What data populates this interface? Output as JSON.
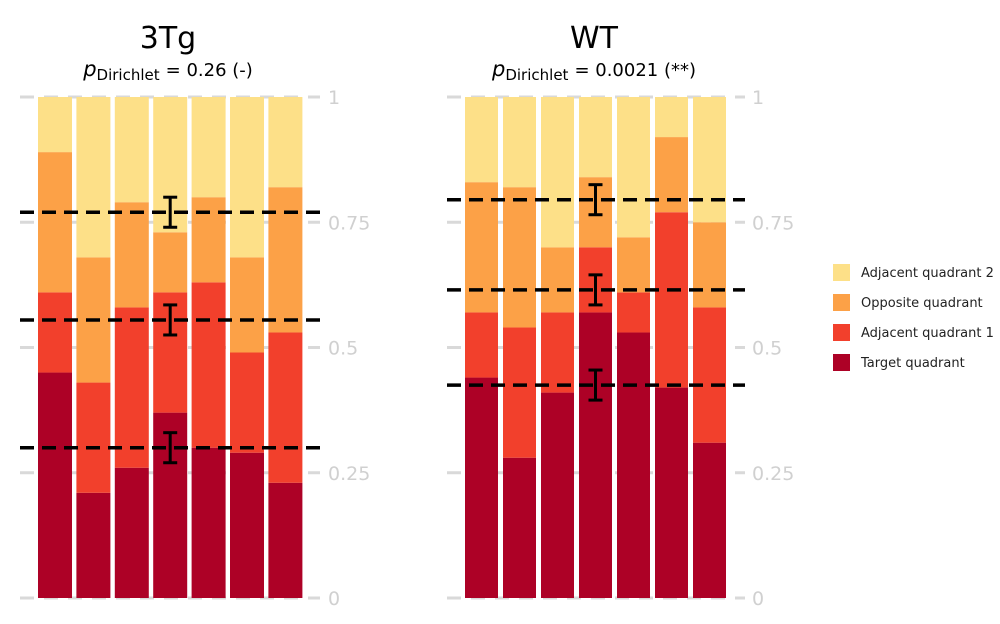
{
  "chart_data": {
    "type": "bar",
    "stacked": true,
    "colors": {
      "Target quadrant": "#ad0126",
      "Adjacent quadrant 1": "#f2402c",
      "Opposite quadrant": "#fca147",
      "Adjacent quadrant 2": "#fde088"
    },
    "legend": {
      "position": "right",
      "entries": [
        "Adjacent quadrant 2",
        "Opposite quadrant",
        "Adjacent quadrant 1",
        "Target quadrant"
      ]
    },
    "yticks": [
      "0",
      "0.25",
      "0.5",
      "0.75",
      "1"
    ],
    "ylim": [
      0,
      1
    ],
    "panels": [
      {
        "title": "3Tg",
        "p_symbol": "p",
        "p_subscript": "Dirichlet",
        "p_value": "= 0.26 (-)",
        "bars": [
          [
            0.45,
            0.16,
            0.28,
            0.11
          ],
          [
            0.21,
            0.22,
            0.25,
            0.32
          ],
          [
            0.26,
            0.32,
            0.21,
            0.21
          ],
          [
            0.37,
            0.24,
            0.12,
            0.27
          ],
          [
            0.3,
            0.33,
            0.17,
            0.2
          ],
          [
            0.29,
            0.2,
            0.19,
            0.32
          ],
          [
            0.23,
            0.3,
            0.29,
            0.18
          ]
        ],
        "means": [
          0.3,
          0.555,
          0.77
        ],
        "errors": [
          0.03,
          0.03,
          0.03
        ]
      },
      {
        "title": "WT",
        "p_symbol": "p",
        "p_subscript": "Dirichlet",
        "p_value": "= 0.0021 (**)",
        "bars": [
          [
            0.44,
            0.13,
            0.26,
            0.17
          ],
          [
            0.28,
            0.26,
            0.28,
            0.18
          ],
          [
            0.41,
            0.16,
            0.13,
            0.3
          ],
          [
            0.57,
            0.13,
            0.14,
            0.16
          ],
          [
            0.53,
            0.08,
            0.11,
            0.28
          ],
          [
            0.42,
            0.35,
            0.15,
            0.08
          ],
          [
            0.31,
            0.27,
            0.17,
            0.25
          ]
        ],
        "means": [
          0.425,
          0.615,
          0.795
        ],
        "errors": [
          0.03,
          0.03,
          0.03
        ]
      }
    ]
  }
}
